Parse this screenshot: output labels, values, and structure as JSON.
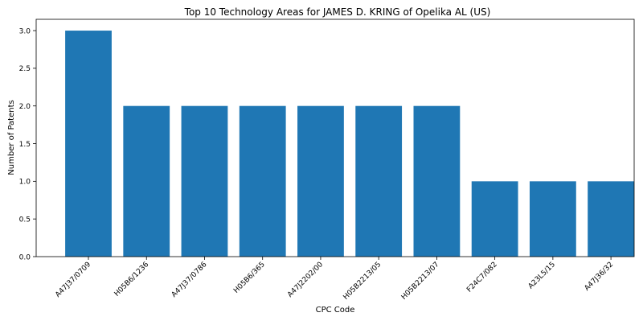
{
  "chart_data": {
    "type": "bar",
    "title": "Top 10 Technology Areas for JAMES D. KRING of Opelika AL (US)",
    "xlabel": "CPC Code",
    "ylabel": "Number of Patents",
    "categories": [
      "A47J37/0709",
      "H05B6/1236",
      "A47J37/0786",
      "H05B6/365",
      "A47J2202/00",
      "H05B2213/05",
      "H05B2213/07",
      "F24C7/082",
      "A23L5/15",
      "A47J36/32"
    ],
    "values": [
      3,
      2,
      2,
      2,
      2,
      2,
      2,
      1,
      1,
      1
    ],
    "ylim": [
      0,
      3.15
    ],
    "yticks": [
      "0.0",
      "0.5",
      "1.0",
      "1.5",
      "2.0",
      "2.5",
      "3.0"
    ],
    "bar_color": "#1f77b4",
    "grid": false,
    "legend": "none"
  }
}
